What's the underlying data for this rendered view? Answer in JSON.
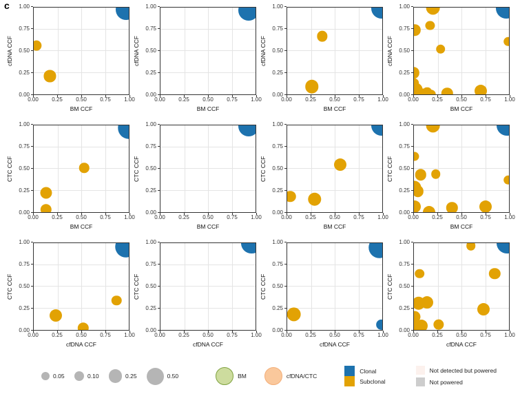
{
  "figure_label": "c",
  "colors": {
    "clonal": "#1D72AE",
    "subclonal": "#E2A204",
    "bm_fill": "#CDDC9E",
    "bm_border": "#7FA240",
    "cfdna_fill": "#FAC89C",
    "cfdna_border": "#F3AE78",
    "not_detected": "#FCF1ED",
    "not_powered": "#CDCDCD",
    "size_gray": "#B5B5B5",
    "grid": "#E4E4E4",
    "panel_border": "#333333"
  },
  "chart_data": {
    "type": "scatter",
    "x_range": [
      0,
      1
    ],
    "y_range": [
      0,
      1
    ],
    "ticks": [
      "0.00",
      "0.25",
      "0.50",
      "0.75",
      "1.00"
    ],
    "size_legend_values": [
      0.05,
      0.1,
      0.25,
      0.5
    ],
    "panels": [
      {
        "xlabel": "BM CCF",
        "ylabel": "cfDNA CCF",
        "points": [
          {
            "x": 0.97,
            "y": 0.98,
            "s": 0.8,
            "t": "clonal"
          },
          {
            "x": 0.03,
            "y": 0.56,
            "s": 0.12,
            "t": "subclonal"
          },
          {
            "x": 0.17,
            "y": 0.21,
            "s": 0.17,
            "t": "subclonal"
          }
        ]
      },
      {
        "xlabel": "BM CCF",
        "ylabel": "cfDNA CCF",
        "points": [
          {
            "x": 0.93,
            "y": 0.97,
            "s": 0.8,
            "t": "clonal"
          }
        ]
      },
      {
        "xlabel": "BM CCF",
        "ylabel": "cfDNA CCF",
        "points": [
          {
            "x": 0.99,
            "y": 0.99,
            "s": 0.8,
            "t": "clonal"
          },
          {
            "x": 0.37,
            "y": 0.67,
            "s": 0.12,
            "t": "subclonal"
          },
          {
            "x": 0.26,
            "y": 0.09,
            "s": 0.25,
            "t": "subclonal"
          }
        ]
      },
      {
        "xlabel": "BM CCF",
        "ylabel": "cfDNA CCF",
        "points": [
          {
            "x": 0.97,
            "y": 0.99,
            "s": 0.8,
            "t": "clonal"
          },
          {
            "x": 0.2,
            "y": 1.0,
            "s": 0.3,
            "t": "subclonal"
          },
          {
            "x": 0.17,
            "y": 0.79,
            "s": 0.07,
            "t": "subclonal"
          },
          {
            "x": 0.01,
            "y": 0.74,
            "s": 0.15,
            "t": "subclonal"
          },
          {
            "x": 0.28,
            "y": 0.52,
            "s": 0.08,
            "t": "subclonal"
          },
          {
            "x": 0.99,
            "y": 0.61,
            "s": 0.08,
            "t": "subclonal"
          },
          {
            "x": 0.0,
            "y": 0.25,
            "s": 0.15,
            "t": "subclonal"
          },
          {
            "x": 0.0,
            "y": 0.13,
            "s": 0.08,
            "t": "subclonal"
          },
          {
            "x": 0.02,
            "y": 0.05,
            "s": 0.3,
            "t": "subclonal"
          },
          {
            "x": 0.1,
            "y": 0.0,
            "s": 0.17,
            "t": "subclonal"
          },
          {
            "x": 0.14,
            "y": 0.03,
            "s": 0.08,
            "t": "subclonal"
          },
          {
            "x": 0.18,
            "y": 0.0,
            "s": 0.1,
            "t": "subclonal"
          },
          {
            "x": 0.35,
            "y": 0.01,
            "s": 0.15,
            "t": "subclonal"
          },
          {
            "x": 0.7,
            "y": 0.04,
            "s": 0.2,
            "t": "subclonal"
          }
        ]
      },
      {
        "xlabel": "BM CCF",
        "ylabel": "CTC CCF",
        "points": [
          {
            "x": 1.0,
            "y": 0.97,
            "s": 0.9,
            "t": "clonal"
          },
          {
            "x": 0.53,
            "y": 0.51,
            "s": 0.1,
            "t": "subclonal"
          },
          {
            "x": 0.13,
            "y": 0.22,
            "s": 0.17,
            "t": "subclonal"
          },
          {
            "x": 0.13,
            "y": 0.03,
            "s": 0.15,
            "t": "subclonal"
          }
        ]
      },
      {
        "xlabel": "BM CCF",
        "ylabel": "CTC CCF",
        "points": [
          {
            "x": 0.93,
            "y": 0.99,
            "s": 0.8,
            "t": "clonal"
          }
        ]
      },
      {
        "xlabel": "BM CCF",
        "ylabel": "CTC CCF",
        "points": [
          {
            "x": 0.99,
            "y": 1.0,
            "s": 0.8,
            "t": "clonal"
          },
          {
            "x": 0.56,
            "y": 0.55,
            "s": 0.2,
            "t": "subclonal"
          },
          {
            "x": 0.03,
            "y": 0.18,
            "s": 0.15,
            "t": "subclonal"
          },
          {
            "x": 0.29,
            "y": 0.15,
            "s": 0.25,
            "t": "subclonal"
          }
        ]
      },
      {
        "xlabel": "BM CCF",
        "ylabel": "CTC CCF",
        "points": [
          {
            "x": 0.98,
            "y": 1.0,
            "s": 0.8,
            "t": "clonal"
          },
          {
            "x": 0.2,
            "y": 1.0,
            "s": 0.3,
            "t": "subclonal"
          },
          {
            "x": 0.01,
            "y": 0.64,
            "s": 0.07,
            "t": "subclonal"
          },
          {
            "x": 0.07,
            "y": 0.43,
            "s": 0.15,
            "t": "subclonal"
          },
          {
            "x": 0.23,
            "y": 0.44,
            "s": 0.08,
            "t": "subclonal"
          },
          {
            "x": 0.0,
            "y": 0.28,
            "s": 0.3,
            "t": "subclonal"
          },
          {
            "x": 0.04,
            "y": 0.24,
            "s": 0.15,
            "t": "subclonal"
          },
          {
            "x": 0.01,
            "y": 0.06,
            "s": 0.2,
            "t": "subclonal"
          },
          {
            "x": 0.16,
            "y": 0.0,
            "s": 0.2,
            "t": "subclonal"
          },
          {
            "x": 0.4,
            "y": 0.05,
            "s": 0.15,
            "t": "subclonal"
          },
          {
            "x": 0.75,
            "y": 0.06,
            "s": 0.2,
            "t": "subclonal"
          },
          {
            "x": 0.99,
            "y": 0.37,
            "s": 0.08,
            "t": "subclonal"
          }
        ]
      },
      {
        "xlabel": "cfDNA CCF",
        "ylabel": "CTC CCF",
        "points": [
          {
            "x": 0.97,
            "y": 0.96,
            "s": 0.9,
            "t": "clonal"
          },
          {
            "x": 0.87,
            "y": 0.34,
            "s": 0.1,
            "t": "subclonal"
          },
          {
            "x": 0.23,
            "y": 0.17,
            "s": 0.2,
            "t": "subclonal"
          },
          {
            "x": 0.52,
            "y": 0.02,
            "s": 0.15,
            "t": "subclonal"
          }
        ]
      },
      {
        "xlabel": "cfDNA CCF",
        "ylabel": "CTC CCF",
        "points": [
          {
            "x": 0.96,
            "y": 1.0,
            "s": 0.8,
            "t": "clonal"
          }
        ]
      },
      {
        "xlabel": "cfDNA CCF",
        "ylabel": "CTC CCF",
        "points": [
          {
            "x": 0.97,
            "y": 0.95,
            "s": 0.9,
            "t": "clonal"
          },
          {
            "x": 0.99,
            "y": 0.06,
            "s": 0.13,
            "t": "clonal"
          },
          {
            "x": 0.07,
            "y": 0.18,
            "s": 0.3,
            "t": "subclonal"
          }
        ]
      },
      {
        "xlabel": "cfDNA CCF",
        "ylabel": "CTC CCF",
        "points": [
          {
            "x": 0.98,
            "y": 1.0,
            "s": 0.8,
            "t": "clonal"
          },
          {
            "x": 0.6,
            "y": 0.97,
            "s": 0.08,
            "t": "subclonal"
          },
          {
            "x": 0.06,
            "y": 0.65,
            "s": 0.08,
            "t": "subclonal"
          },
          {
            "x": 0.85,
            "y": 0.65,
            "s": 0.15,
            "t": "subclonal"
          },
          {
            "x": 0.73,
            "y": 0.24,
            "s": 0.2,
            "t": "subclonal"
          },
          {
            "x": 0.05,
            "y": 0.31,
            "s": 0.25,
            "t": "subclonal"
          },
          {
            "x": 0.14,
            "y": 0.32,
            "s": 0.2,
            "t": "subclonal"
          },
          {
            "x": 0.01,
            "y": 0.15,
            "s": 0.17,
            "t": "subclonal"
          },
          {
            "x": 0.02,
            "y": 0.02,
            "s": 0.3,
            "t": "subclonal"
          },
          {
            "x": 0.08,
            "y": 0.05,
            "s": 0.2,
            "t": "subclonal"
          },
          {
            "x": 0.26,
            "y": 0.06,
            "s": 0.12,
            "t": "subclonal"
          }
        ]
      }
    ]
  },
  "legend": {
    "sizes": [
      "0.05",
      "0.10",
      "0.25",
      "0.50"
    ],
    "samples": [
      {
        "label": "BM"
      },
      {
        "label": "cfDNA/CTC"
      }
    ],
    "clonality": [
      {
        "label": "Clonal"
      },
      {
        "label": "Subclonal"
      }
    ],
    "power": [
      {
        "label": "Not detected but powered"
      },
      {
        "label": "Not powered"
      }
    ]
  }
}
